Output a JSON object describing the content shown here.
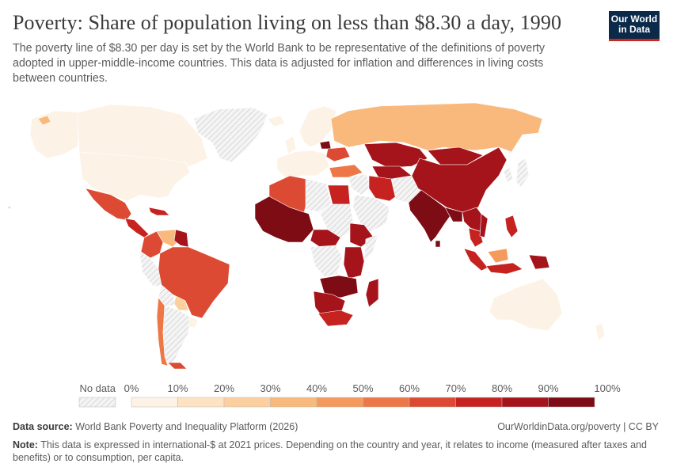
{
  "header": {
    "title": "Poverty: Share of population living on less than $8.30 a day, 1990",
    "subtitle": "The poverty line of $8.30 per day is set by the World Bank to be representative of the definitions of poverty adopted in upper-middle-income countries. This data is adjusted for inflation and differences in living costs between countries.",
    "logo_line1": "Our World",
    "logo_line2": "in Data"
  },
  "legend": {
    "no_data_label": "No data",
    "ticks": [
      "0%",
      "10%",
      "20%",
      "30%",
      "40%",
      "50%",
      "60%",
      "70%",
      "80%",
      "90%",
      "100%"
    ],
    "colors": [
      "#fdf2e6",
      "#fde3c3",
      "#fcd09e",
      "#f9b97c",
      "#f59a5d",
      "#ee7748",
      "#dc4a33",
      "#c62320",
      "#a6141b",
      "#7e0c14"
    ]
  },
  "footer": {
    "source_label": "Data source:",
    "source_text": "World Bank Poverty and Inequality Platform (2026)",
    "url": "OurWorldinData.org/poverty | CC BY",
    "note_label": "Note:",
    "note_text": "This data is expressed in international-$ at 2021 prices. Depending on the country and year, it relates to income (measured after taxes and benefits) or to consumption, per capita."
  }
}
